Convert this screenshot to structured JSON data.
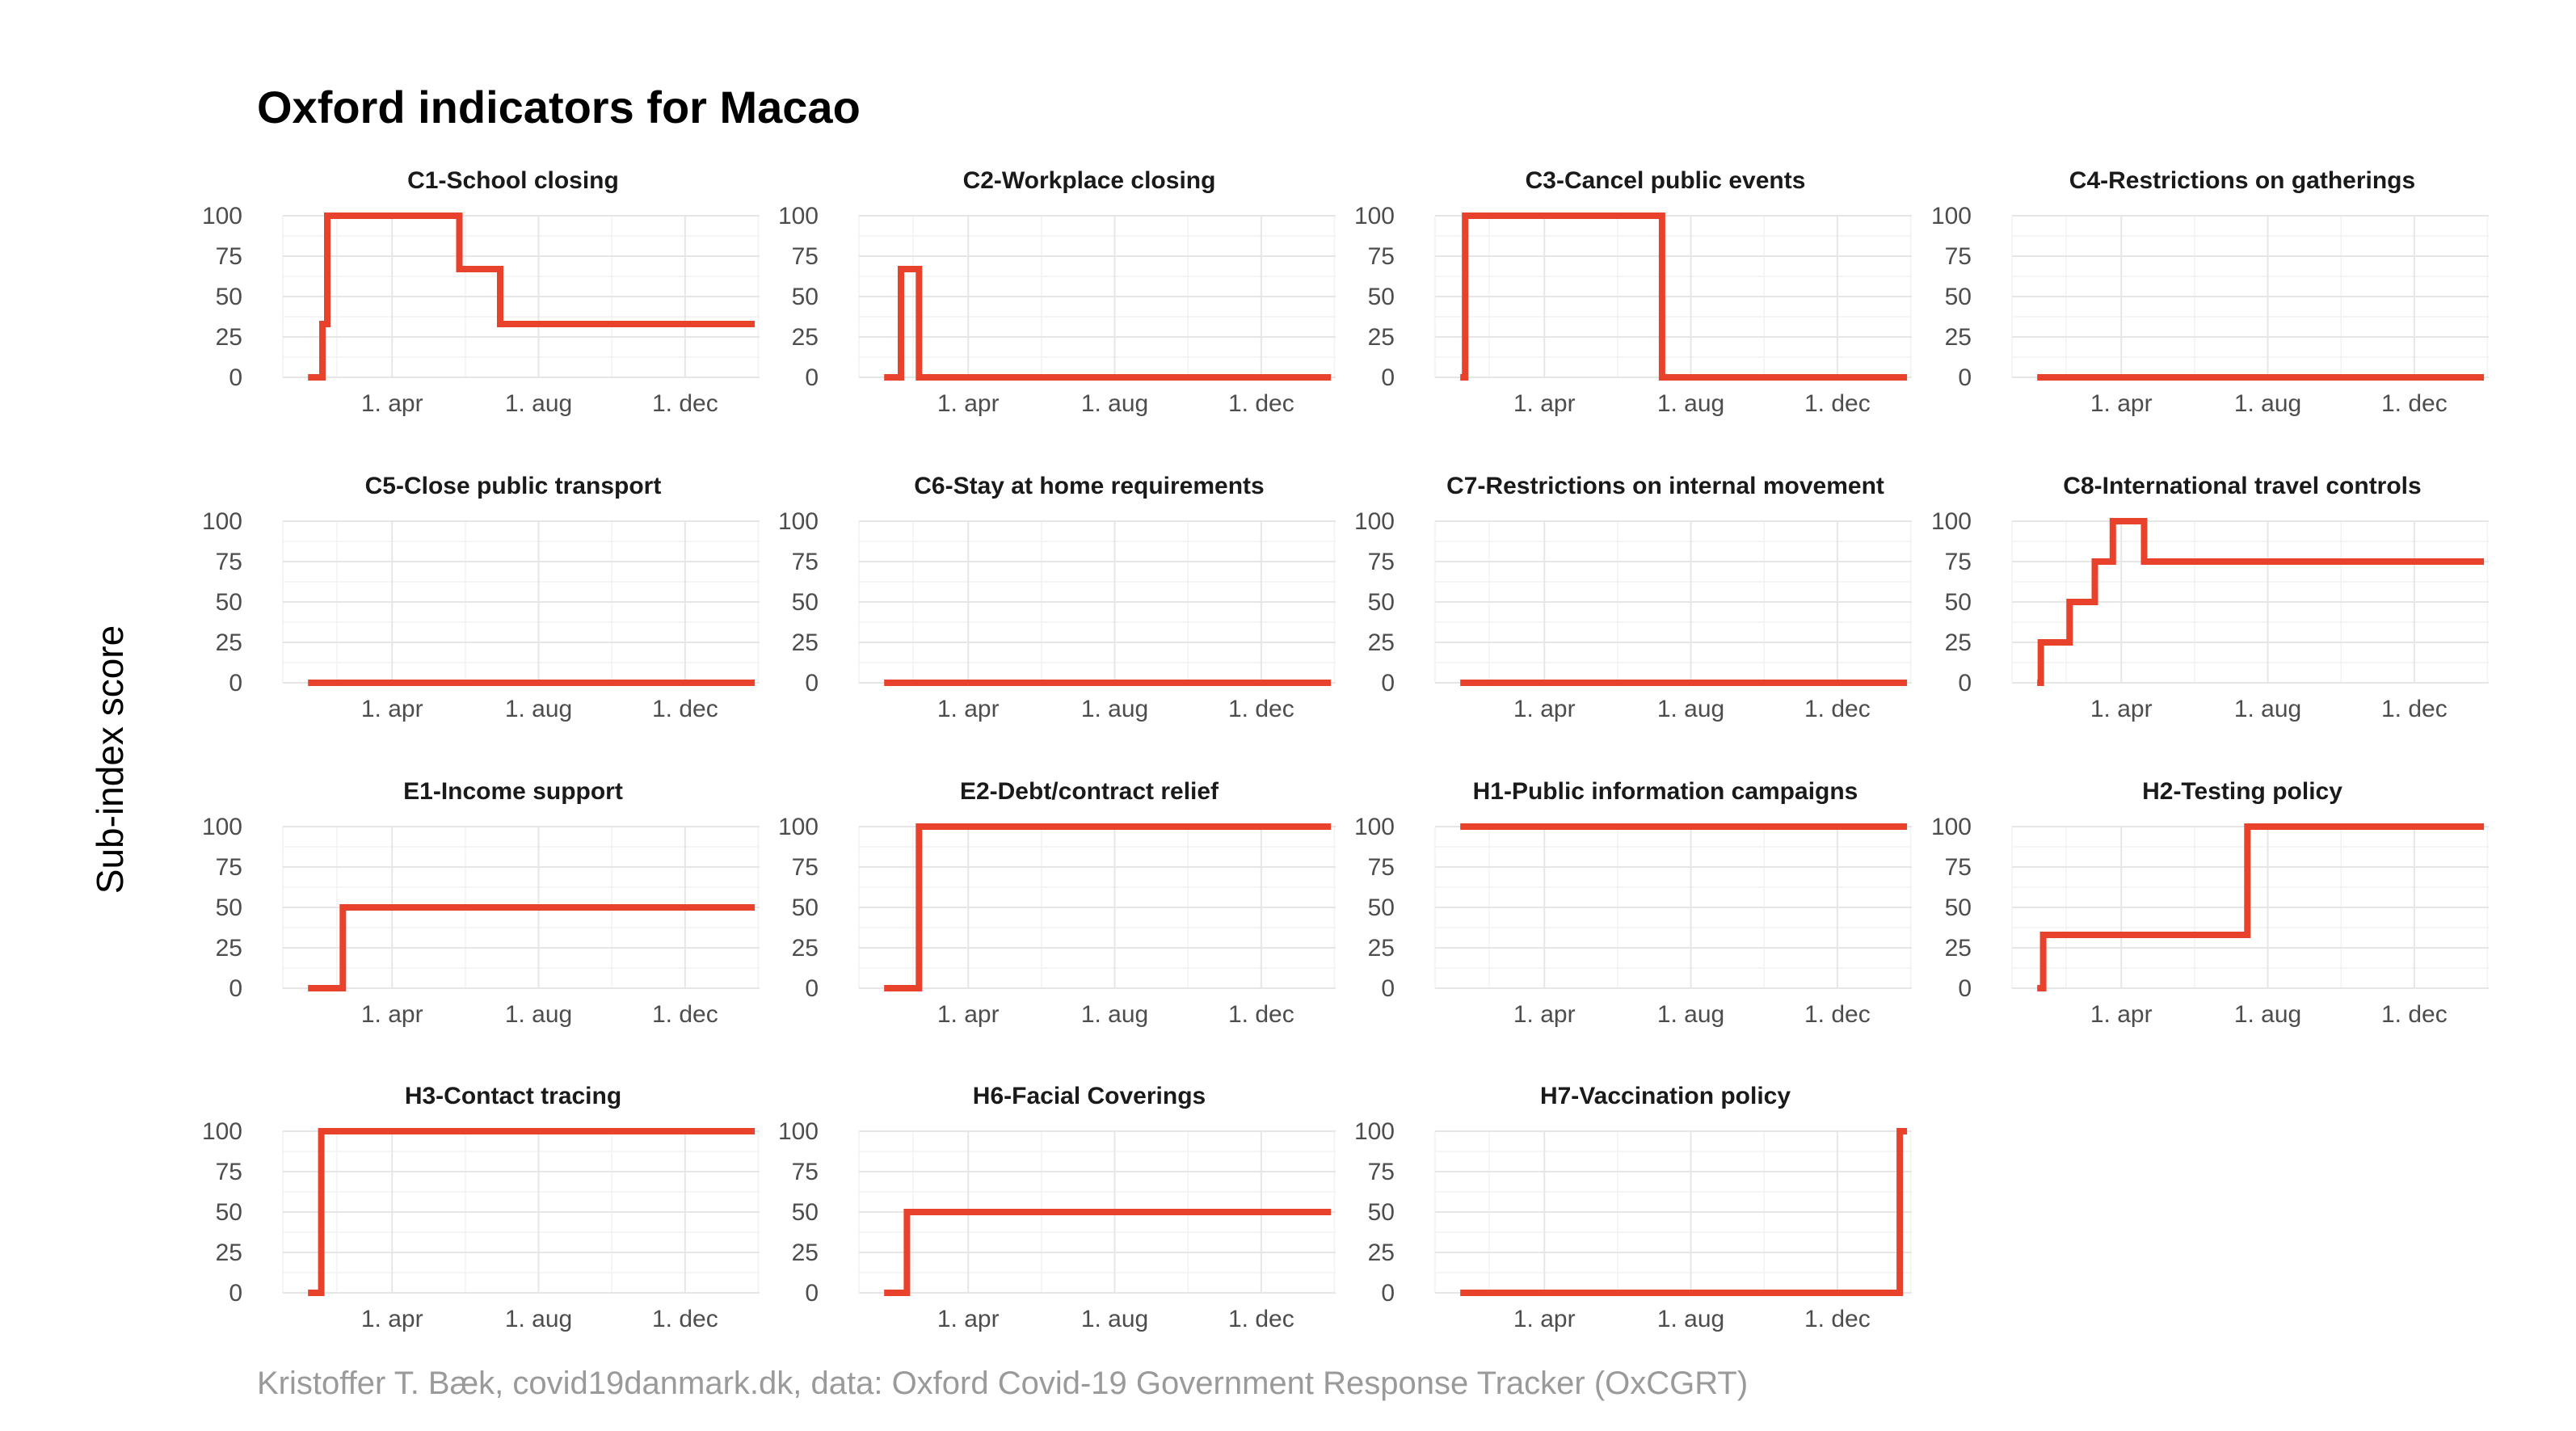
{
  "title": "Oxford indicators for Macao",
  "ylabel": "Sub-index score",
  "caption": "Kristoffer T. Bæk, covid19danmark.dk, data: Oxford Covid-19 Government Response Tracker (OxCGRT)",
  "colors": {
    "line": "#e8412c",
    "grid": "#e6e6e6"
  },
  "chart_data": {
    "type": "line",
    "facet": true,
    "ylim": [
      0,
      100
    ],
    "y_ticks": [
      0,
      25,
      50,
      75,
      100
    ],
    "x_ticks": [
      {
        "label": "1. apr",
        "date": "2020-04-01"
      },
      {
        "label": "1. aug",
        "date": "2020-08-01"
      },
      {
        "label": "1. dec",
        "date": "2020-12-01"
      }
    ],
    "xlim": [
      "2020-01-01",
      "2021-02-01"
    ],
    "x_range_of_series": [
      "2020-01-22",
      "2021-01-28"
    ],
    "panels": [
      {
        "title": "C1-School closing",
        "steps": [
          [
            "2020-01-22",
            0
          ],
          [
            "2020-02-03",
            33
          ],
          [
            "2020-02-07",
            100
          ],
          [
            "2020-05-27",
            67
          ],
          [
            "2020-06-30",
            33
          ],
          [
            "2021-01-28",
            33
          ]
        ]
      },
      {
        "title": "C2-Workplace closing",
        "steps": [
          [
            "2020-01-22",
            0
          ],
          [
            "2020-02-05",
            67
          ],
          [
            "2020-02-20",
            0
          ],
          [
            "2021-01-28",
            0
          ]
        ]
      },
      {
        "title": "C3-Cancel public events",
        "steps": [
          [
            "2020-01-22",
            0
          ],
          [
            "2020-01-26",
            100
          ],
          [
            "2020-07-08",
            0
          ],
          [
            "2021-01-28",
            0
          ]
        ]
      },
      {
        "title": "C4-Restrictions on gatherings",
        "steps": [
          [
            "2020-01-22",
            0
          ],
          [
            "2021-01-28",
            0
          ]
        ]
      },
      {
        "title": "C5-Close public transport",
        "steps": [
          [
            "2020-01-22",
            0
          ],
          [
            "2021-01-28",
            0
          ]
        ]
      },
      {
        "title": "C6-Stay at home requirements",
        "steps": [
          [
            "2020-01-22",
            0
          ],
          [
            "2021-01-28",
            0
          ]
        ]
      },
      {
        "title": "C7-Restrictions on internal movement",
        "steps": [
          [
            "2020-01-22",
            0
          ],
          [
            "2021-01-28",
            0
          ]
        ]
      },
      {
        "title": "C8-International travel controls",
        "steps": [
          [
            "2020-01-22",
            0
          ],
          [
            "2020-01-25",
            25
          ],
          [
            "2020-02-18",
            50
          ],
          [
            "2020-03-10",
            75
          ],
          [
            "2020-03-25",
            100
          ],
          [
            "2020-04-20",
            75
          ],
          [
            "2021-01-28",
            75
          ]
        ]
      },
      {
        "title": "E1-Income support",
        "steps": [
          [
            "2020-01-22",
            0
          ],
          [
            "2020-02-20",
            50
          ],
          [
            "2021-01-28",
            50
          ]
        ]
      },
      {
        "title": "E2-Debt/contract relief",
        "steps": [
          [
            "2020-01-22",
            0
          ],
          [
            "2020-02-20",
            100
          ],
          [
            "2021-01-28",
            100
          ]
        ]
      },
      {
        "title": "H1-Public information campaigns",
        "steps": [
          [
            "2020-01-22",
            100
          ],
          [
            "2021-01-28",
            100
          ]
        ]
      },
      {
        "title": "H2-Testing policy",
        "steps": [
          [
            "2020-01-22",
            0
          ],
          [
            "2020-01-27",
            33
          ],
          [
            "2020-07-15",
            100
          ],
          [
            "2021-01-28",
            100
          ]
        ]
      },
      {
        "title": "H3-Contact tracing",
        "steps": [
          [
            "2020-01-22",
            0
          ],
          [
            "2020-02-02",
            100
          ],
          [
            "2021-01-28",
            100
          ]
        ]
      },
      {
        "title": "H6-Facial Coverings",
        "steps": [
          [
            "2020-01-22",
            0
          ],
          [
            "2020-02-10",
            50
          ],
          [
            "2021-01-28",
            50
          ]
        ]
      },
      {
        "title": "H7-Vaccination policy",
        "steps": [
          [
            "2020-01-22",
            0
          ],
          [
            "2021-01-22",
            100
          ],
          [
            "2021-01-28",
            100
          ]
        ]
      }
    ]
  }
}
